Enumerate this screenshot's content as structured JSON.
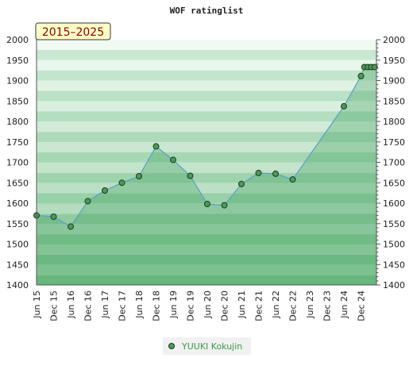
{
  "chart_data": {
    "type": "area",
    "title": "WOF ratinglist",
    "badge": "2015–2025",
    "xlabel": "",
    "ylabel": "",
    "ylim": [
      1400,
      2000
    ],
    "yticks": [
      1400,
      1450,
      1500,
      1550,
      1600,
      1650,
      1700,
      1750,
      1800,
      1850,
      1900,
      1950,
      2000
    ],
    "x_labels": [
      "Jun 15",
      "Dec 15",
      "Jun 16",
      "Dec 16",
      "Jun 17",
      "Dec 17",
      "Jun 18",
      "Dec 18",
      "Jun 19",
      "Dec 19",
      "Jun 20",
      "Dec 20",
      "Jun 21",
      "Dec 21",
      "Jun 22",
      "Dec 22",
      "Jun 23",
      "Dec 23",
      "Jun 24",
      "Dec 24"
    ],
    "grid": true,
    "legend_position": "bottom-center",
    "series": [
      {
        "name": "YUUKI Kokujin",
        "color": "#4a9a5a",
        "points": [
          {
            "x": 0.0,
            "y": 1570
          },
          {
            "x": 1.0,
            "y": 1567
          },
          {
            "x": 2.0,
            "y": 1543
          },
          {
            "x": 3.0,
            "y": 1605
          },
          {
            "x": 4.0,
            "y": 1631
          },
          {
            "x": 5.0,
            "y": 1650
          },
          {
            "x": 6.0,
            "y": 1666
          },
          {
            "x": 7.0,
            "y": 1739
          },
          {
            "x": 8.0,
            "y": 1706
          },
          {
            "x": 9.0,
            "y": 1667
          },
          {
            "x": 10.0,
            "y": 1598
          },
          {
            "x": 11.0,
            "y": 1595
          },
          {
            "x": 12.0,
            "y": 1647
          },
          {
            "x": 13.0,
            "y": 1674
          },
          {
            "x": 14.0,
            "y": 1672
          },
          {
            "x": 15.0,
            "y": 1658
          },
          {
            "x": 18.0,
            "y": 1837
          },
          {
            "x": 19.0,
            "y": 1911
          },
          {
            "x": 19.2,
            "y": 1933
          },
          {
            "x": 19.4,
            "y": 1933
          },
          {
            "x": 19.6,
            "y": 1933
          },
          {
            "x": 19.8,
            "y": 1933
          }
        ]
      }
    ]
  }
}
